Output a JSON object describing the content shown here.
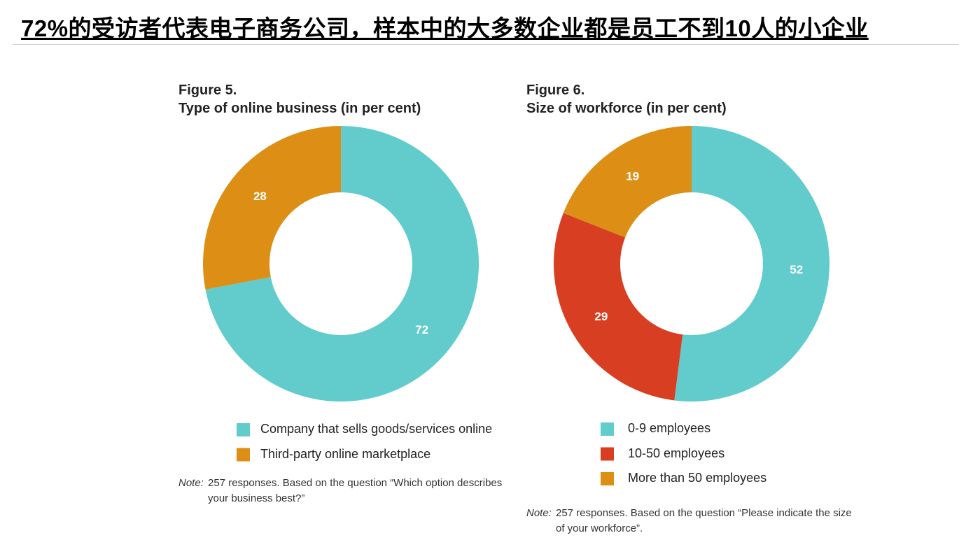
{
  "title": "72%的受访者代表电子商务公司，样本中的大多数企业都是员工不到10人的小企业",
  "chart_data": [
    {
      "type": "pie",
      "title": "Figure 5.",
      "subtitle": "Type of online business (in per cent)",
      "categories": [
        "Company that sells goods/services online",
        "Third-party online marketplace"
      ],
      "values": [
        72,
        28
      ],
      "colors": [
        "#62cbcc",
        "#dc8f14"
      ],
      "note_label": "Note:",
      "note": "257 responses. Based on the question “Which option describes your business best?”"
    },
    {
      "type": "pie",
      "title": "Figure 6.",
      "subtitle": "Size of workforce (in per cent)",
      "categories": [
        "0-9 employees",
        "10-50 employees",
        "More than 50 employees"
      ],
      "values": [
        52,
        29,
        19
      ],
      "colors": [
        "#62cbcc",
        "#d83f22",
        "#dc8f14"
      ],
      "note_label": "Note:",
      "note": "257 responses. Based on the question “Please indicate the size of your workforce”."
    }
  ]
}
